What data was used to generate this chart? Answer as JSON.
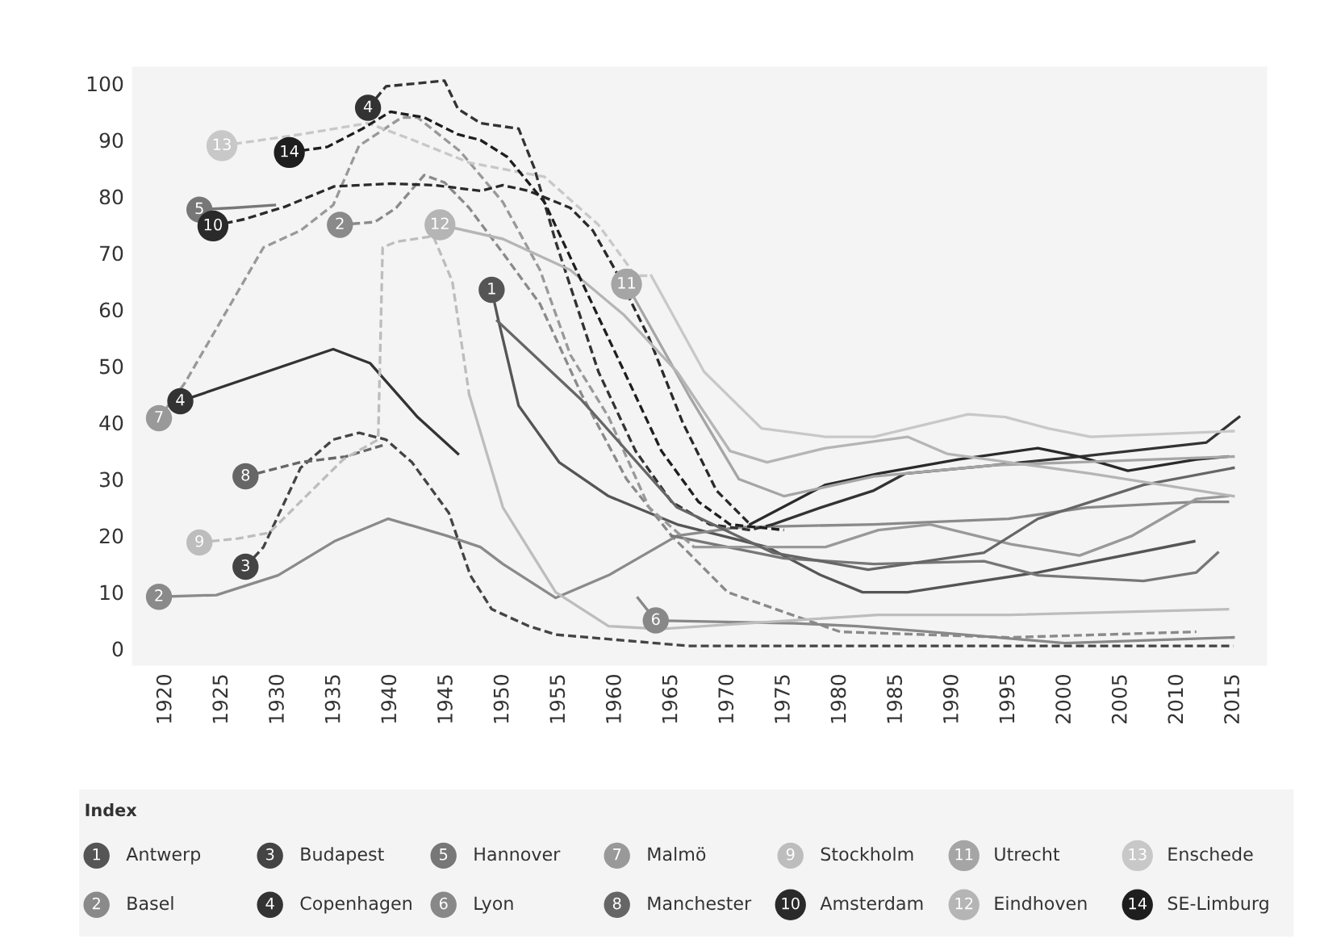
{
  "chart_data": {
    "type": "line",
    "legend_title": "Index",
    "legend": "bottom",
    "xlim": [
      1917,
      2018
    ],
    "ylim": [
      -3,
      103
    ],
    "xticks": [
      1920,
      1925,
      1930,
      1935,
      1940,
      1945,
      1950,
      1955,
      1960,
      1965,
      1970,
      1975,
      1980,
      1985,
      1990,
      1995,
      2000,
      2005,
      2010,
      2015
    ],
    "yticks": [
      0,
      10,
      20,
      30,
      40,
      50,
      60,
      70,
      80,
      90,
      100
    ],
    "grid": false,
    "annotations": [
      {
        "text": "1",
        "x": 1949,
        "y": 63.5
      },
      {
        "text": "2",
        "x": 1919.4,
        "y": 9.2
      },
      {
        "text": "2",
        "x": 1935.5,
        "y": 75
      },
      {
        "text": "3",
        "x": 1927.1,
        "y": 14.5
      },
      {
        "text": "4",
        "x": 1921.3,
        "y": 43.8
      },
      {
        "text": "4",
        "x": 1938,
        "y": 95.7
      },
      {
        "text": "5",
        "x": 1923,
        "y": 77.7
      },
      {
        "text": "6",
        "x": 1963.6,
        "y": 5
      },
      {
        "text": "7",
        "x": 1919.4,
        "y": 40.8
      },
      {
        "text": "8",
        "x": 1927.1,
        "y": 30.5
      },
      {
        "text": "9",
        "x": 1923,
        "y": 18.8
      },
      {
        "text": "10",
        "x": 1924.2,
        "y": 74.8
      },
      {
        "text": "11",
        "x": 1961,
        "y": 64.5
      },
      {
        "text": "12",
        "x": 1944.4,
        "y": 75
      },
      {
        "text": "13",
        "x": 1925,
        "y": 89
      },
      {
        "text": "14",
        "x": 1931,
        "y": 87.8
      }
    ],
    "series": [
      {
        "name": "Antwerp",
        "color": "#555555",
        "line_style": "solid",
        "x": [
          1949,
          1949.5,
          1951.4,
          1955,
          1959.4,
          1965.5,
          1973.5,
          1978.3,
          1982,
          1986,
          1997.6,
          2011.5
        ],
        "values": [
          63.5,
          59,
          43,
          33,
          27,
          22,
          18,
          13,
          10,
          10,
          13.5,
          19
        ]
      },
      {
        "name": "Basel",
        "color": "#8a8a8a",
        "line_style": "solid",
        "x": [
          1919.4,
          1924.5,
          1930,
          1935,
          1939.8,
          1945,
          1948,
          1950,
          1954.7,
          1959.4,
          1965.5,
          1971,
          1983,
          1995,
          2002,
          2011.7,
          2014.5
        ],
        "values": [
          9.2,
          9.5,
          13,
          19,
          23,
          20,
          18,
          15,
          9,
          13,
          20,
          21.5,
          22,
          23,
          25,
          26,
          26
        ]
      },
      {
        "color": "#8a8a8a",
        "line_style": "dashed",
        "x": [
          1935.5,
          1938.6,
          1940.5,
          1943,
          1944.8,
          1947,
          1950,
          1953.3,
          1957,
          1961,
          1965,
          1970,
          1980,
          1995,
          2011.7
        ],
        "values": [
          75,
          75.5,
          78,
          83.8,
          82.5,
          78,
          70,
          61,
          45,
          30,
          20,
          10,
          3,
          2,
          3
        ]
      },
      {
        "name": "Budapest",
        "color": "#444444",
        "line_style": "dashed",
        "x": [
          1927.1,
          1928.7,
          1932,
          1934.9,
          1937.2,
          1939.6,
          1941.9,
          1945.2,
          1947.1,
          1949,
          1952.3,
          1954.7,
          1966.5,
          1983,
          2015
        ],
        "values": [
          14.5,
          18,
          32,
          37,
          38.2,
          37,
          33,
          24,
          13,
          7,
          4,
          2.5,
          0.5,
          0.5,
          0.5
        ]
      },
      {
        "name": "Copenhagen",
        "color": "#333333",
        "line_style": "solid",
        "x": [
          1921.3,
          1934.9,
          1938.2,
          1942.4,
          1946
        ],
        "values": [
          43.8,
          53,
          50.5,
          41,
          34.5
        ]
      },
      {
        "color": "#333333",
        "line_style": "dashed",
        "x": [
          1938,
          1939.6,
          1944.8,
          1946,
          1948,
          1951.4,
          1952.8,
          1954.7,
          1958.5,
          1961.8,
          1965,
          1968.4,
          1972,
          1974
        ],
        "values": [
          95.7,
          99.5,
          100.5,
          95.5,
          93,
          92,
          85,
          72,
          49,
          35,
          26,
          22,
          21,
          22
        ]
      },
      {
        "color": "#333333",
        "line_style": "solid",
        "x": [
          1974,
          1978.3,
          1983,
          1985.8,
          1993.8,
          2001.3,
          2012.6,
          2015.5
        ],
        "values": [
          22,
          25,
          28,
          31,
          32.5,
          34,
          36.5,
          41
        ]
      },
      {
        "name": "Hannover",
        "color": "#777777",
        "line_style": "solid",
        "x": [
          1923,
          1926,
          1929.7
        ],
        "values": [
          77.7,
          78,
          78.5
        ]
      },
      {
        "color": "#777777",
        "line_style": "solid",
        "x": [
          1965,
          1975,
          1983,
          1992.8,
          1997.6,
          2007,
          2011.7,
          2013.6
        ],
        "values": [
          20,
          16,
          15,
          15.5,
          13,
          12,
          13.5,
          17
        ]
      },
      {
        "name": "Lyon",
        "color": "#888888",
        "line_style": "solid",
        "x": [
          1962,
          1963.6,
          1976,
          1981.5,
          1988,
          2000,
          2015
        ],
        "values": [
          9,
          5,
          4.5,
          4,
          3,
          1,
          2
        ]
      },
      {
        "name": "Malmö",
        "color": "#999999",
        "line_style": "dashed",
        "x": [
          1919.4,
          1921.7,
          1928.7,
          1932,
          1934.9,
          1937.2,
          1941,
          1942.4,
          1946.2,
          1950,
          1953.3,
          1956,
          1959.4,
          1963,
          1967
        ],
        "values": [
          40.8,
          47,
          71,
          74,
          78.5,
          89,
          94,
          94,
          88,
          79,
          67,
          52,
          41,
          25,
          18
        ]
      },
      {
        "color": "#999999",
        "line_style": "solid",
        "x": [
          1967,
          1978.7,
          1983.4,
          1988,
          1995.2,
          2001.3,
          2006,
          2011.7,
          2014.5
        ],
        "values": [
          18,
          18,
          21,
          22,
          18.5,
          16.5,
          20,
          26.5,
          27
        ]
      },
      {
        "name": "Manchester",
        "color": "#666666",
        "line_style": "dashed",
        "x": [
          1927.1,
          1932,
          1936,
          1939.3
        ],
        "values": [
          30.5,
          33,
          34,
          36
        ]
      },
      {
        "color": "#666666",
        "line_style": "solid",
        "x": [
          1949.5,
          1957,
          1965.5,
          1974,
          1982.5,
          1992.8,
          1997.6,
          2007,
          2015
        ],
        "values": [
          58,
          44,
          25,
          17,
          14,
          17,
          23,
          29,
          32
        ]
      },
      {
        "name": "Stockholm",
        "color": "#bdbdbd",
        "line_style": "dashed",
        "x": [
          1923,
          1926.4,
          1929.2,
          1933,
          1935.8,
          1938.9,
          1939.3,
          1940.5,
          1943.8,
          1945.5,
          1947
        ],
        "values": [
          18.8,
          19.5,
          20.5,
          28,
          33.5,
          37,
          71,
          72,
          73,
          65,
          45
        ]
      },
      {
        "color": "#bdbdbd",
        "line_style": "solid",
        "x": [
          1947,
          1950,
          1954.7,
          1959.4,
          1964,
          1983.4,
          1995.2,
          2014.5
        ],
        "values": [
          45,
          25,
          10,
          4,
          3.5,
          6,
          6,
          7
        ]
      },
      {
        "name": "Amsterdam",
        "color": "#2a2a2a",
        "line_style": "dashed",
        "x": [
          1924.2,
          1927,
          1930.6,
          1935,
          1940,
          1944,
          1948,
          1950,
          1952.3,
          1956,
          1958,
          1960,
          1963,
          1966,
          1969,
          1972
        ],
        "values": [
          74.8,
          76,
          78.2,
          81.8,
          82.3,
          82,
          81,
          82,
          81,
          78,
          74,
          67,
          55,
          40,
          28,
          22
        ]
      },
      {
        "color": "#2a2a2a",
        "line_style": "solid",
        "x": [
          1972,
          1978.7,
          1983.4,
          1990.5,
          1997.6,
          2001.3,
          2005.6,
          2011.7,
          2014.5
        ],
        "values": [
          22,
          29,
          31,
          33.5,
          35.5,
          34,
          31.5,
          33.5,
          34
        ]
      },
      {
        "name": "Utrecht",
        "color": "#a5a5a5",
        "line_style": "solid",
        "x": [
          1961,
          1966.5,
          1971,
          1975,
          1983,
          1993.8,
          2001,
          2015
        ],
        "values": [
          64.5,
          45,
          30,
          27,
          30.5,
          32.5,
          33,
          34
        ]
      },
      {
        "name": "Eindhoven",
        "color": "#b5b5b5",
        "line_style": "solid",
        "x": [
          1944.4,
          1950,
          1956,
          1960.8,
          1965.5,
          1970.2,
          1973.5,
          1978.7,
          1986,
          1989.5,
          2002.3,
          2015
        ],
        "values": [
          75,
          72.5,
          67,
          59,
          49,
          35,
          33,
          35.5,
          37.5,
          34.5,
          31,
          27
        ]
      },
      {
        "name": "Enschede",
        "color": "#c8c8c8",
        "line_style": "dashed",
        "x": [
          1925,
          1932,
          1938,
          1942,
          1947,
          1953.7,
          1958.5,
          1961.8,
          1963.2
        ],
        "values": [
          89,
          91,
          93,
          90,
          86,
          83.5,
          75,
          66,
          66
        ]
      },
      {
        "color": "#c8c8c8",
        "line_style": "solid",
        "x": [
          1963.2,
          1967.9,
          1973,
          1978.7,
          1983,
          1991.4,
          1994.7,
          1998.5,
          2002.3,
          2015
        ],
        "values": [
          66,
          49,
          39,
          37.5,
          37.5,
          41.5,
          41,
          39,
          37.5,
          38.5
        ]
      },
      {
        "name": "SE-Limburg",
        "color": "#1e1e1e",
        "line_style": "dashed",
        "x": [
          1931,
          1934.4,
          1937.5,
          1940,
          1943,
          1946,
          1948,
          1950.4,
          1953.7,
          1957,
          1960.8,
          1964.1,
          1967.4,
          1970.2,
          1975
        ],
        "values": [
          87.8,
          88.8,
          92,
          95,
          94,
          91,
          90,
          87,
          79,
          65,
          49,
          35,
          26,
          22,
          21
        ]
      }
    ]
  }
}
